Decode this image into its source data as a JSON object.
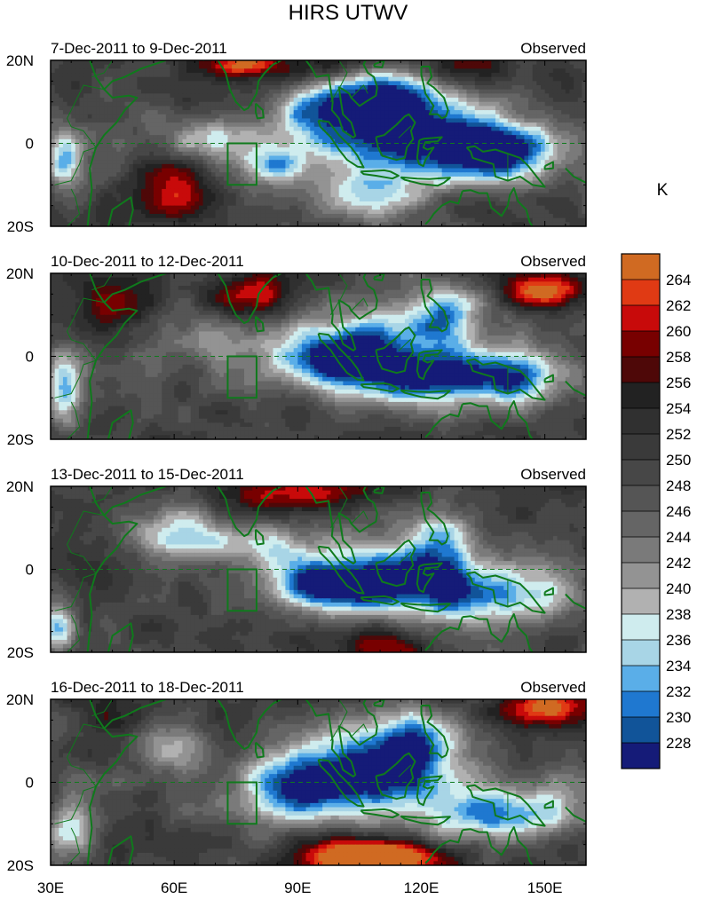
{
  "chart_data": {
    "type": "heatmap",
    "title": "HIRS UTWV",
    "colorbar": {
      "unit": "K",
      "labels": [
        "264",
        "262",
        "260",
        "258",
        "256",
        "254",
        "252",
        "250",
        "248",
        "246",
        "244",
        "242",
        "240",
        "238",
        "236",
        "234",
        "232",
        "230",
        "228"
      ],
      "colors": [
        "#d06a22",
        "#e03a14",
        "#c80a0a",
        "#780000",
        "#4e0808",
        "#222222",
        "#303030",
        "#3a3a3a",
        "#474747",
        "#555555",
        "#656565",
        "#7a7a7a",
        "#939393",
        "#b1b1b1",
        "#cfecee",
        "#a8d5e6",
        "#5aaee8",
        "#1f78d0",
        "#115499",
        "#151b78"
      ]
    },
    "x_ticks": [
      "30E",
      "60E",
      "90E",
      "120E",
      "150E"
    ],
    "y_ticks": [
      "20N",
      "0",
      "20S"
    ],
    "xlim": [
      30,
      160
    ],
    "ylim": [
      -20,
      20
    ],
    "box_region": {
      "lon": [
        73,
        80
      ],
      "lat": [
        -10,
        0
      ]
    },
    "panels": [
      {
        "period": "7-Dec-2011 to 9-Dec-2011",
        "label": "Observed",
        "anomalies": [
          {
            "lon": 118,
            "lat": 3,
            "slon": 14,
            "slat": 8,
            "amp": -24
          },
          {
            "lon": 140,
            "lat": -2,
            "slon": 10,
            "slat": 5,
            "amp": -20
          },
          {
            "lon": 110,
            "lat": 12,
            "slon": 7,
            "slat": 5,
            "amp": -16
          },
          {
            "lon": 95,
            "lat": 8,
            "slon": 7,
            "slat": 6,
            "amp": -14
          },
          {
            "lon": 70,
            "lat": 1,
            "slon": 9,
            "slat": 4,
            "amp": -11
          },
          {
            "lon": 85,
            "lat": -5,
            "slon": 5,
            "slat": 3,
            "amp": -14
          },
          {
            "lon": 33,
            "lat": -4,
            "slon": 3,
            "slat": 5,
            "amp": -14
          },
          {
            "lon": 108,
            "lat": -13,
            "slon": 10,
            "slat": 5,
            "amp": -10
          },
          {
            "lon": 60,
            "lat": -10,
            "slon": 7,
            "slat": 6,
            "amp": 10
          },
          {
            "lon": 95,
            "lat": 18,
            "slon": 10,
            "slat": 3,
            "amp": 8
          },
          {
            "lon": 75,
            "lat": 19,
            "slon": 6,
            "slat": 2,
            "amp": 14
          },
          {
            "lon": 130,
            "lat": 18,
            "slon": 8,
            "slat": 3,
            "amp": 8
          }
        ]
      },
      {
        "period": "10-Dec-2011 to 12-Dec-2011",
        "label": "Observed",
        "anomalies": [
          {
            "lon": 105,
            "lat": 2,
            "slon": 12,
            "slat": 6,
            "amp": -18
          },
          {
            "lon": 140,
            "lat": -5,
            "slon": 11,
            "slat": 5,
            "amp": -20
          },
          {
            "lon": 118,
            "lat": -6,
            "slon": 12,
            "slat": 4,
            "amp": -16
          },
          {
            "lon": 125,
            "lat": 10,
            "slon": 7,
            "slat": 6,
            "amp": -16
          },
          {
            "lon": 95,
            "lat": -1,
            "slon": 10,
            "slat": 4,
            "amp": -12
          },
          {
            "lon": 70,
            "lat": 5,
            "slon": 8,
            "slat": 4,
            "amp": -8
          },
          {
            "lon": 33,
            "lat": -8,
            "slon": 3,
            "slat": 7,
            "amp": -14
          },
          {
            "lon": 150,
            "lat": 16,
            "slon": 7,
            "slat": 3,
            "amp": 16
          },
          {
            "lon": 45,
            "lat": 12,
            "slon": 7,
            "slat": 5,
            "amp": 10
          },
          {
            "lon": 80,
            "lat": 15,
            "slon": 8,
            "slat": 4,
            "amp": 10
          }
        ]
      },
      {
        "period": "13-Dec-2011 to 15-Dec-2011",
        "label": "Observed",
        "anomalies": [
          {
            "lon": 110,
            "lat": -3,
            "slon": 14,
            "slat": 6,
            "amp": -22
          },
          {
            "lon": 138,
            "lat": -6,
            "slon": 12,
            "slat": 5,
            "amp": -17
          },
          {
            "lon": 95,
            "lat": -4,
            "slon": 8,
            "slat": 4,
            "amp": -16
          },
          {
            "lon": 62,
            "lat": 8,
            "slon": 10,
            "slat": 5,
            "amp": -12
          },
          {
            "lon": 125,
            "lat": 8,
            "slon": 7,
            "slat": 6,
            "amp": -12
          },
          {
            "lon": 85,
            "lat": 6,
            "slon": 7,
            "slat": 4,
            "amp": -10
          },
          {
            "lon": 32,
            "lat": -15,
            "slon": 3,
            "slat": 4,
            "amp": -16
          },
          {
            "lon": 110,
            "lat": -18,
            "slon": 8,
            "slat": 3,
            "amp": 10
          },
          {
            "lon": 90,
            "lat": 18,
            "slon": 14,
            "slat": 3,
            "amp": 10
          },
          {
            "lon": 45,
            "lat": 0,
            "slon": 6,
            "slat": 5,
            "amp": 6
          }
        ]
      },
      {
        "period": "16-Dec-2011 to 18-Dec-2011",
        "label": "Observed",
        "anomalies": [
          {
            "lon": 105,
            "lat": 2,
            "slon": 16,
            "slat": 7,
            "amp": -24
          },
          {
            "lon": 140,
            "lat": -8,
            "slon": 12,
            "slat": 5,
            "amp": -18
          },
          {
            "lon": 120,
            "lat": 11,
            "slon": 8,
            "slat": 5,
            "amp": -14
          },
          {
            "lon": 88,
            "lat": -2,
            "slon": 8,
            "slat": 5,
            "amp": -10
          },
          {
            "lon": 60,
            "lat": 8,
            "slon": 6,
            "slat": 4,
            "amp": -12
          },
          {
            "lon": 35,
            "lat": -12,
            "slon": 4,
            "slat": 5,
            "amp": -12
          },
          {
            "lon": 108,
            "lat": -18,
            "slon": 11,
            "slat": 3,
            "amp": 28
          },
          {
            "lon": 150,
            "lat": 18,
            "slon": 8,
            "slat": 3,
            "amp": 16
          },
          {
            "lon": 45,
            "lat": 15,
            "slon": 6,
            "slat": 3,
            "amp": 8
          }
        ]
      }
    ]
  }
}
